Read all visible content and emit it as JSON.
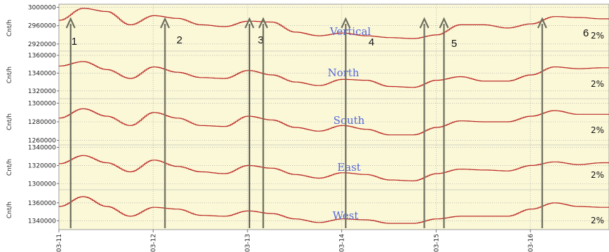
{
  "chart_data": {
    "type": "line",
    "x_ticks": [
      "03-11",
      "03-12",
      "03-13",
      "03-14",
      "03-15",
      "03-16"
    ],
    "xlim": [
      "03-11",
      "03-16 20:00"
    ],
    "grid": true,
    "colors": {
      "plot_bg": "#fbf8d8",
      "line": "#bb2a25",
      "arrow": "#6e6e5e",
      "label": "#5468d8",
      "grid": "#9a9a9a"
    },
    "panels": [
      {
        "label": "Vertical",
        "ylabel": "Cnt/h",
        "scale_label": "2%",
        "ylim": [
          2906000,
          3004000
        ],
        "yticks": [
          "3000000",
          "2960000",
          "2920000"
        ],
        "x": [
          "03-11 00:00",
          "03-11 06:00",
          "03-11 12:00",
          "03-11 18:00",
          "03-12 00:00",
          "03-12 06:00",
          "03-12 12:00",
          "03-12 18:00",
          "03-13 00:00",
          "03-13 06:00",
          "03-13 12:00",
          "03-13 18:00",
          "03-14 00:00",
          "03-14 06:00",
          "03-14 12:00",
          "03-14 18:00",
          "03-15 00:00",
          "03-15 06:00",
          "03-15 12:00",
          "03-15 18:00",
          "03-16 00:00",
          "03-16 06:00",
          "03-16 12:00",
          "03-16 18:00"
        ],
        "values": [
          2972000,
          2998000,
          2991000,
          2962000,
          2982000,
          2976000,
          2962000,
          2958000,
          2970000,
          2968000,
          2946000,
          2938000,
          2944000,
          2938000,
          2934000,
          2932000,
          2940000,
          2962000,
          2962000,
          2955000,
          2964000,
          2980000,
          2978000,
          2975000
        ]
      },
      {
        "label": "North",
        "ylabel": "Cnt/h",
        "scale_label": "2%",
        "ylim": [
          1312000,
          1364000
        ],
        "yticks": [
          "1360000",
          "1340000",
          "1320000"
        ],
        "x": [
          "03-11 00:00",
          "03-11 06:00",
          "03-11 12:00",
          "03-11 18:00",
          "03-12 00:00",
          "03-12 06:00",
          "03-12 12:00",
          "03-12 18:00",
          "03-13 00:00",
          "03-13 06:00",
          "03-13 12:00",
          "03-13 18:00",
          "03-14 00:00",
          "03-14 06:00",
          "03-14 12:00",
          "03-14 18:00",
          "03-15 00:00",
          "03-15 06:00",
          "03-15 12:00",
          "03-15 18:00",
          "03-16 00:00",
          "03-16 06:00",
          "03-16 12:00",
          "03-16 18:00"
        ],
        "values": [
          1348000,
          1353000,
          1344000,
          1334000,
          1347000,
          1341000,
          1335000,
          1334000,
          1343000,
          1338000,
          1330000,
          1326000,
          1333000,
          1332000,
          1325000,
          1324000,
          1332000,
          1336000,
          1331000,
          1331000,
          1338000,
          1347000,
          1345000,
          1346000
        ]
      },
      {
        "label": "South",
        "ylabel": "Cnt/h",
        "scale_label": "2%",
        "ylim": [
          1256000,
          1304000
        ],
        "yticks": [
          "1300000",
          "1280000",
          "1260000"
        ],
        "x": [
          "03-11 00:00",
          "03-11 06:00",
          "03-11 12:00",
          "03-11 18:00",
          "03-12 00:00",
          "03-12 06:00",
          "03-12 12:00",
          "03-12 18:00",
          "03-13 00:00",
          "03-13 06:00",
          "03-13 12:00",
          "03-13 18:00",
          "03-14 00:00",
          "03-14 06:00",
          "03-14 12:00",
          "03-14 18:00",
          "03-15 00:00",
          "03-15 06:00",
          "03-15 12:00",
          "03-15 18:00",
          "03-16 00:00",
          "03-16 06:00",
          "03-16 12:00",
          "03-16 18:00"
        ],
        "values": [
          1284000,
          1294000,
          1286000,
          1276000,
          1290000,
          1284000,
          1276000,
          1275000,
          1286000,
          1282000,
          1274000,
          1270000,
          1276000,
          1272000,
          1266000,
          1266000,
          1274000,
          1281000,
          1280000,
          1280000,
          1286000,
          1292000,
          1288000,
          1288000
        ]
      },
      {
        "label": "East",
        "ylabel": "Cnt/h",
        "scale_label": "2%",
        "ylim": [
          1294000,
          1342000
        ],
        "yticks": [
          "1340000",
          "1320000",
          "1300000"
        ],
        "x": [
          "03-11 00:00",
          "03-11 06:00",
          "03-11 12:00",
          "03-11 18:00",
          "03-12 00:00",
          "03-12 06:00",
          "03-12 12:00",
          "03-12 18:00",
          "03-13 00:00",
          "03-13 06:00",
          "03-13 12:00",
          "03-13 18:00",
          "03-14 00:00",
          "03-14 06:00",
          "03-14 12:00",
          "03-14 18:00",
          "03-15 00:00",
          "03-15 06:00",
          "03-15 12:00",
          "03-15 18:00",
          "03-16 00:00",
          "03-16 06:00",
          "03-16 12:00",
          "03-16 18:00"
        ],
        "values": [
          1322000,
          1331000,
          1323000,
          1313000,
          1326000,
          1319000,
          1313000,
          1311000,
          1320000,
          1317000,
          1310000,
          1306000,
          1312000,
          1310000,
          1304000,
          1303000,
          1311000,
          1316000,
          1315000,
          1314000,
          1320000,
          1324000,
          1321000,
          1323000
        ]
      },
      {
        "label": "West",
        "ylabel": "Cnt/h",
        "scale_label": "2%",
        "ylim": [
          1330000,
          1374000
        ],
        "yticks": [
          "1360000",
          "1340000"
        ],
        "x": [
          "03-11 00:00",
          "03-11 06:00",
          "03-11 12:00",
          "03-11 18:00",
          "03-12 00:00",
          "03-12 06:00",
          "03-12 12:00",
          "03-12 18:00",
          "03-13 00:00",
          "03-13 06:00",
          "03-13 12:00",
          "03-13 18:00",
          "03-14 00:00",
          "03-14 06:00",
          "03-14 12:00",
          "03-14 18:00",
          "03-15 00:00",
          "03-15 06:00",
          "03-15 12:00",
          "03-15 18:00",
          "03-16 00:00",
          "03-16 06:00",
          "03-16 12:00",
          "03-16 18:00"
        ],
        "values": [
          1356000,
          1367000,
          1356000,
          1345000,
          1355000,
          1353000,
          1346000,
          1345000,
          1351000,
          1348000,
          1342000,
          1338000,
          1342000,
          1341000,
          1337000,
          1337000,
          1342000,
          1345000,
          1345000,
          1345000,
          1353000,
          1360000,
          1356000,
          1355000
        ]
      }
    ],
    "events": [
      {
        "label": "1",
        "x": "03-11 03:00"
      },
      {
        "label": "2",
        "x": "03-12 03:00"
      },
      {
        "label": "3",
        "x": "03-13 00:30"
      },
      {
        "label": "3",
        "x": "03-13 04:00"
      },
      {
        "label": "4",
        "x": "03-14 01:00"
      },
      {
        "label": "5",
        "x": "03-14 21:00"
      },
      {
        "label": "5",
        "x": "03-15 02:00"
      },
      {
        "label": "6",
        "x": "03-16 03:00"
      }
    ]
  }
}
